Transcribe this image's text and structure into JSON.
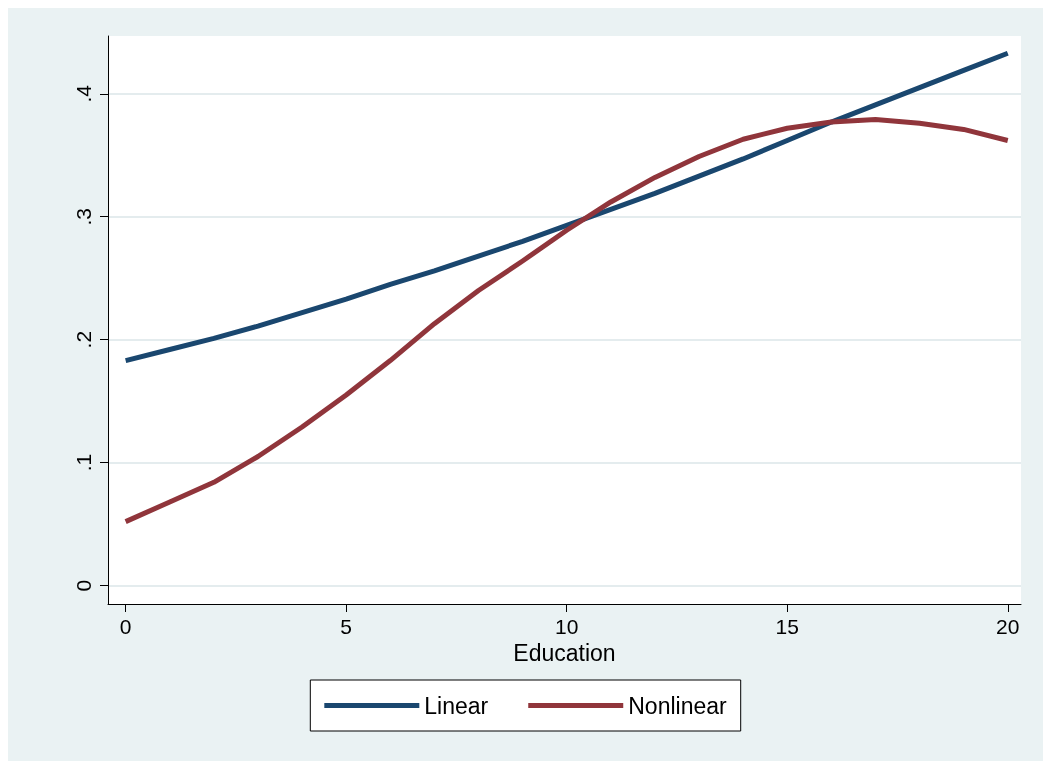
{
  "chart_data": {
    "type": "line",
    "xlabel": "Education",
    "x": [
      0,
      1,
      2,
      3,
      4,
      5,
      6,
      7,
      8,
      9,
      10,
      11,
      12,
      13,
      14,
      15,
      16,
      17,
      18,
      19,
      20
    ],
    "series": [
      {
        "name": "Linear",
        "color": "#1a476f",
        "values": [
          0.183,
          0.192,
          0.201,
          0.211,
          0.222,
          0.233,
          0.245,
          0.256,
          0.268,
          0.28,
          0.293,
          0.306,
          0.319,
          0.333,
          0.347,
          0.362,
          0.377,
          0.391,
          0.405,
          0.419,
          0.433
        ]
      },
      {
        "name": "Nonlinear",
        "color": "#90353b",
        "values": [
          0.052,
          0.068,
          0.084,
          0.105,
          0.129,
          0.155,
          0.183,
          0.213,
          0.24,
          0.264,
          0.289,
          0.312,
          0.332,
          0.349,
          0.363,
          0.372,
          0.377,
          0.379,
          0.376,
          0.371,
          0.362
        ]
      }
    ],
    "xlim": [
      -0.4,
      20.3
    ],
    "xticks": [
      0,
      5,
      10,
      15,
      20
    ],
    "ylim": [
      -0.015,
      0.447
    ],
    "yticks": [
      {
        "value": 0,
        "label": "0"
      },
      {
        "value": 0.1,
        "label": ".1"
      },
      {
        "value": 0.2,
        "label": ".2"
      },
      {
        "value": 0.3,
        "label": ".3"
      },
      {
        "value": 0.4,
        "label": ".4"
      }
    ],
    "grid": "y",
    "legend": "bottom",
    "marker": "none",
    "line_style": "solid"
  }
}
